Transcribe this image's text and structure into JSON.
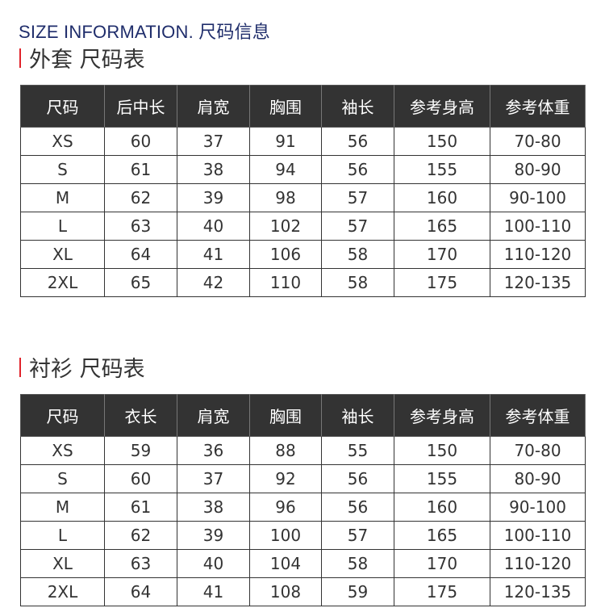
{
  "header": {
    "title": "SIZE INFORMATION. 尺码信息"
  },
  "accent_color": "#e0232b",
  "tables": [
    {
      "title": "外套 尺码表",
      "columns": [
        "尺码",
        "后中长",
        "肩宽",
        "胸围",
        "袖长",
        "参考身高",
        "参考体重"
      ],
      "rows": [
        [
          "XS",
          "60",
          "37",
          "91",
          "56",
          "150",
          "70-80"
        ],
        [
          "S",
          "61",
          "38",
          "94",
          "56",
          "155",
          "80-90"
        ],
        [
          "M",
          "62",
          "39",
          "98",
          "57",
          "160",
          "90-100"
        ],
        [
          "L",
          "63",
          "40",
          "102",
          "57",
          "165",
          "100-110"
        ],
        [
          "XL",
          "64",
          "41",
          "106",
          "58",
          "170",
          "110-120"
        ],
        [
          "2XL",
          "65",
          "42",
          "110",
          "58",
          "175",
          "120-135"
        ]
      ]
    },
    {
      "title": "衬衫 尺码表",
      "columns": [
        "尺码",
        "衣长",
        "肩宽",
        "胸围",
        "袖长",
        "参考身高",
        "参考体重"
      ],
      "rows": [
        [
          "XS",
          "59",
          "36",
          "88",
          "55",
          "150",
          "70-80"
        ],
        [
          "S",
          "60",
          "37",
          "92",
          "56",
          "155",
          "80-90"
        ],
        [
          "M",
          "61",
          "38",
          "96",
          "56",
          "160",
          "90-100"
        ],
        [
          "L",
          "62",
          "39",
          "100",
          "57",
          "165",
          "100-110"
        ],
        [
          "XL",
          "63",
          "40",
          "104",
          "58",
          "170",
          "110-120"
        ],
        [
          "2XL",
          "64",
          "41",
          "108",
          "59",
          "175",
          "120-135"
        ]
      ]
    }
  ]
}
